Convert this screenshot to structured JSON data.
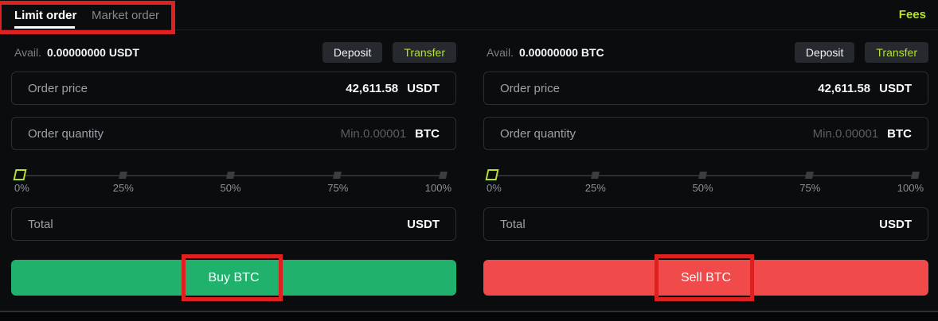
{
  "tabbar": {
    "limit_tab": "Limit order",
    "market_tab": "Market order",
    "fees_link": "Fees"
  },
  "panels": [
    {
      "side": "buy",
      "avail_label": "Avail.",
      "avail_value": "0.00000000 USDT",
      "deposit_button": "Deposit",
      "transfer_button": "Transfer",
      "price": {
        "label": "Order price",
        "value": "42,611.58",
        "unit": "USDT"
      },
      "quantity": {
        "label": "Order quantity",
        "placeholder": "Min.0.00001",
        "unit": "BTC"
      },
      "slider": {
        "value_percent": 0,
        "labels": [
          "0%",
          "25%",
          "50%",
          "75%",
          "100%"
        ]
      },
      "total": {
        "label": "Total",
        "unit": "USDT"
      },
      "action_button": "Buy BTC"
    },
    {
      "side": "sell",
      "avail_label": "Avail.",
      "avail_value": "0.00000000 BTC",
      "deposit_button": "Deposit",
      "transfer_button": "Transfer",
      "price": {
        "label": "Order price",
        "value": "42,611.58",
        "unit": "USDT"
      },
      "quantity": {
        "label": "Order quantity",
        "placeholder": "Min.0.00001",
        "unit": "BTC"
      },
      "slider": {
        "value_percent": 0,
        "labels": [
          "0%",
          "25%",
          "50%",
          "75%",
          "100%"
        ]
      },
      "total": {
        "label": "Total",
        "unit": "USDT"
      },
      "action_button": "Sell BTC"
    }
  ],
  "colors": {
    "accent_lime": "#b5e22c",
    "buy_green": "#20b26c",
    "sell_red": "#f04a4a",
    "annotation_red": "#dd2020",
    "background": "#0a0c0e"
  }
}
